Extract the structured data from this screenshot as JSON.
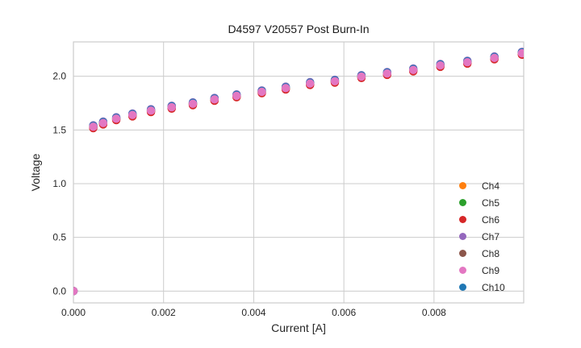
{
  "chart_data": {
    "type": "scatter",
    "title": "D4597 V20557 Post Burn-In",
    "xlabel": "Current [A]",
    "ylabel": "Voltage",
    "xlim": [
      0,
      0.00999
    ],
    "ylim": [
      -0.11,
      2.32
    ],
    "grid": true,
    "grid_color": "#cccccc",
    "background_color": "#ffffff",
    "legend_position": "lower right",
    "legend_frame": false,
    "xticks": {
      "values": [
        0,
        0.002,
        0.004,
        0.006,
        0.008
      ],
      "labels": [
        "0.000",
        "0.002",
        "0.004",
        "0.006",
        "0.008"
      ]
    },
    "yticks": {
      "values": [
        0,
        0.5,
        1.0,
        1.5,
        2.0
      ],
      "labels": [
        "0.0",
        "0.5",
        "1.0",
        "1.5",
        "2.0"
      ]
    },
    "x": [
      0.0,
      0.00044,
      0.00066,
      0.00095,
      0.00131,
      0.00172,
      0.00218,
      0.00265,
      0.00313,
      0.00362,
      0.00418,
      0.00471,
      0.00525,
      0.0058,
      0.00639,
      0.00696,
      0.00754,
      0.00814,
      0.00874,
      0.00934,
      0.00995
    ],
    "series": [
      {
        "name": "Ch4",
        "color": "#ff7f0e",
        "y": [
          0,
          1.527,
          1.562,
          1.602,
          1.637,
          1.677,
          1.709,
          1.741,
          1.782,
          1.815,
          1.852,
          1.887,
          1.929,
          1.951,
          1.994,
          2.023,
          2.056,
          2.098,
          2.128,
          2.168,
          2.211
        ]
      },
      {
        "name": "Ch5",
        "color": "#2ca02c",
        "y": [
          0,
          1.532,
          1.567,
          1.607,
          1.642,
          1.682,
          1.714,
          1.746,
          1.787,
          1.82,
          1.857,
          1.892,
          1.934,
          1.956,
          1.999,
          2.028,
          2.061,
          2.103,
          2.133,
          2.173,
          2.216
        ]
      },
      {
        "name": "Ch6",
        "color": "#d62728",
        "y": [
          0,
          1.517,
          1.552,
          1.592,
          1.627,
          1.667,
          1.699,
          1.731,
          1.772,
          1.805,
          1.842,
          1.877,
          1.919,
          1.941,
          1.984,
          2.013,
          2.046,
          2.088,
          2.118,
          2.158,
          2.201
        ]
      },
      {
        "name": "Ch7",
        "color": "#9467bd",
        "y": [
          0,
          1.543,
          1.578,
          1.618,
          1.653,
          1.693,
          1.725,
          1.757,
          1.798,
          1.831,
          1.868,
          1.903,
          1.945,
          1.967,
          2.01,
          2.039,
          2.072,
          2.114,
          2.144,
          2.184,
          2.227
        ]
      },
      {
        "name": "Ch8",
        "color": "#8c564b",
        "y": [
          0,
          1.524,
          1.559,
          1.599,
          1.634,
          1.674,
          1.706,
          1.738,
          1.779,
          1.812,
          1.849,
          1.884,
          1.926,
          1.948,
          1.991,
          2.02,
          2.053,
          2.095,
          2.125,
          2.165,
          2.208
        ]
      },
      {
        "name": "Ch9",
        "color": "#e377c2",
        "y": [
          0,
          1.53,
          1.565,
          1.605,
          1.64,
          1.68,
          1.712,
          1.744,
          1.785,
          1.818,
          1.855,
          1.89,
          1.932,
          1.954,
          1.997,
          2.026,
          2.059,
          2.101,
          2.131,
          2.171,
          2.214
        ]
      },
      {
        "name": "Ch10",
        "color": "#1f77b4",
        "y": [
          0,
          1.538,
          1.573,
          1.613,
          1.648,
          1.688,
          1.72,
          1.752,
          1.793,
          1.826,
          1.863,
          1.898,
          1.94,
          1.962,
          2.005,
          2.034,
          2.067,
          2.109,
          2.139,
          2.179,
          2.222
        ]
      }
    ],
    "draw_order": [
      "Ch4",
      "Ch5",
      "Ch8",
      "Ch6",
      "Ch7",
      "Ch10",
      "Ch9"
    ]
  }
}
